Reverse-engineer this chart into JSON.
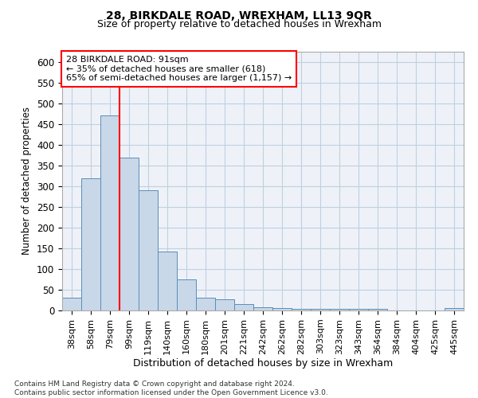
{
  "title1": "28, BIRKDALE ROAD, WREXHAM, LL13 9QR",
  "title2": "Size of property relative to detached houses in Wrexham",
  "xlabel": "Distribution of detached houses by size in Wrexham",
  "ylabel": "Number of detached properties",
  "footnote": "Contains HM Land Registry data © Crown copyright and database right 2024.\nContains public sector information licensed under the Open Government Licence v3.0.",
  "categories": [
    "38sqm",
    "58sqm",
    "79sqm",
    "99sqm",
    "119sqm",
    "140sqm",
    "160sqm",
    "180sqm",
    "201sqm",
    "221sqm",
    "242sqm",
    "262sqm",
    "282sqm",
    "303sqm",
    "323sqm",
    "343sqm",
    "364sqm",
    "384sqm",
    "404sqm",
    "425sqm",
    "445sqm"
  ],
  "values": [
    30,
    320,
    472,
    370,
    290,
    143,
    75,
    30,
    27,
    15,
    8,
    5,
    4,
    4,
    4,
    4,
    4,
    0,
    0,
    0,
    5
  ],
  "bar_color": "#c8d8e8",
  "bar_edge_color": "#5b8db8",
  "vline_x": 2.5,
  "vline_color": "red",
  "annotation_text": "28 BIRKDALE ROAD: 91sqm\n← 35% of detached houses are smaller (618)\n65% of semi-detached houses are larger (1,157) →",
  "annotation_box_color": "white",
  "annotation_box_edge_color": "red",
  "ylim": [
    0,
    625
  ],
  "yticks": [
    0,
    50,
    100,
    150,
    200,
    250,
    300,
    350,
    400,
    450,
    500,
    550,
    600
  ],
  "grid_color": "#c0cfe0",
  "bg_color": "#eef2f8"
}
